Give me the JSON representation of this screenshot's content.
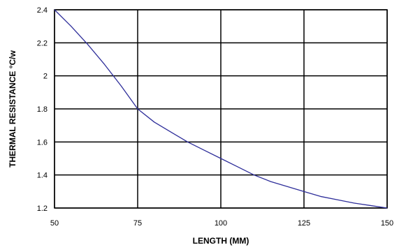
{
  "chart_data": {
    "type": "line",
    "title": "",
    "xlabel": "LENGTH (MM)",
    "ylabel": "THERMAL RESISTANCE °C/w",
    "x": [
      50,
      55,
      60,
      65,
      70,
      75,
      80,
      85,
      90,
      95,
      100,
      105,
      110,
      115,
      120,
      125,
      130,
      135,
      140,
      145,
      150
    ],
    "series": [
      {
        "values": [
          2.4,
          2.3,
          2.19,
          2.07,
          1.94,
          1.8,
          1.72,
          1.66,
          1.6,
          1.55,
          1.5,
          1.45,
          1.4,
          1.36,
          1.33,
          1.3,
          1.27,
          1.25,
          1.23,
          1.215,
          1.2
        ]
      }
    ],
    "xlim": [
      50,
      150
    ],
    "ylim": [
      1.2,
      2.4
    ],
    "xticks": [
      "50",
      "75",
      "100",
      "125",
      "150"
    ],
    "yticks": [
      "1.2",
      "1.4",
      "1.6",
      "1.8",
      "2",
      "2.2",
      "2.4"
    ],
    "grid": true,
    "legend": "none",
    "colors": {
      "line": "#2e2e9a",
      "grid": "#000000"
    }
  }
}
